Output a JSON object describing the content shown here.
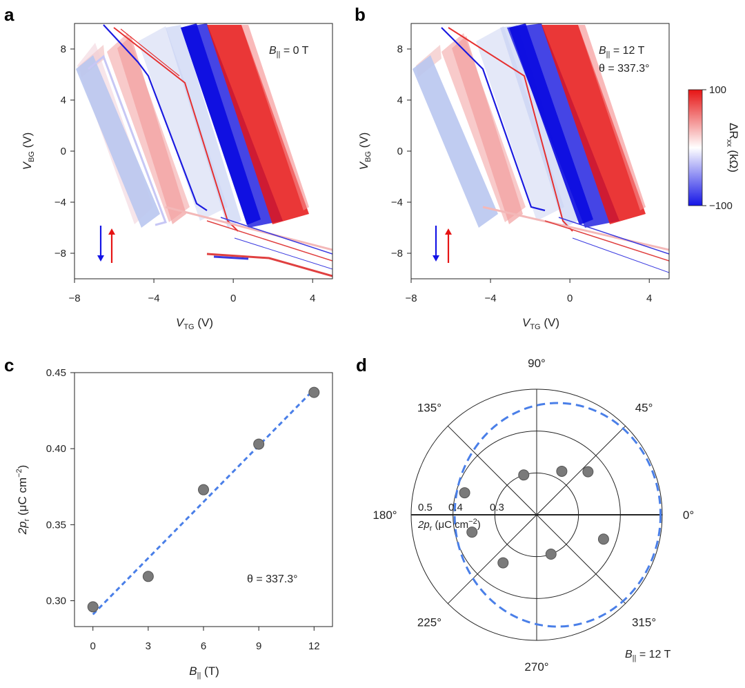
{
  "colors": {
    "down_sweep": "#1414e6",
    "up_sweep": "#e61414",
    "fit_line": "#4a7fe8",
    "marker": "#7a7a7a"
  },
  "panels": [
    {
      "letter": "a",
      "annotation_prefix": "B",
      "annotation_sub": "||",
      "annotation_value": " = 0 T"
    },
    {
      "letter": "b",
      "annotation_prefix": "B",
      "annotation_sub": "||",
      "annotation_value": " = 12 T",
      "angle_label": "θ = 337.3°"
    },
    {
      "letter": "c"
    },
    {
      "letter": "d"
    }
  ],
  "maps": {
    "xlabel_main": "V",
    "xlabel_sub": "TG",
    "xlabel_unit": " (V)",
    "ylabel_main": "V",
    "ylabel_sub": "BG",
    "ylabel_unit": " (V)",
    "xticks": [
      "−8",
      "−4",
      "0",
      "4"
    ],
    "yticks": [
      "8",
      "4",
      "0",
      "−4",
      "−8"
    ],
    "xlim": [
      -8,
      5
    ],
    "ylim": [
      -10,
      10
    ]
  },
  "colorbar": {
    "label_main": "ΔR",
    "label_sub": "xx",
    "label_unit": " (kΩ)",
    "max_label": "100",
    "min_label": "−100",
    "range": [
      -100,
      100
    ]
  },
  "chart_data": [
    {
      "type": "scatter",
      "panel": "c",
      "x": [
        0,
        3,
        6,
        9,
        12
      ],
      "y": [
        0.296,
        0.316,
        0.373,
        0.403,
        0.437
      ],
      "fit": {
        "x": [
          0,
          12
        ],
        "y": [
          0.291,
          0.439
        ]
      },
      "xlabel_main": "B",
      "xlabel_sub": "||",
      "xlabel_unit": " (T)",
      "ylabel_main": "2p",
      "ylabel_sub": "r",
      "ylabel_unit": " (μC cm",
      "ylabel_exp": "−2",
      "ylabel_close": ")",
      "xticks": [
        "0",
        "3",
        "6",
        "9",
        "12"
      ],
      "yticks": [
        "0.45",
        "0.40",
        "0.35",
        "0.30"
      ],
      "xlim": [
        -1,
        13
      ],
      "ylim": [
        0.283,
        0.45
      ],
      "annotation": "θ = 337.3°"
    },
    {
      "type": "scatter",
      "panel": "d",
      "coordinate": "polar",
      "theta_deg": [
        60,
        40,
        108,
        163,
        195,
        235,
        290,
        340
      ],
      "r": [
        0.32,
        0.36,
        0.3,
        0.38,
        0.36,
        0.34,
        0.3,
        0.37
      ],
      "fit_circle": {
        "center_x": 0.05,
        "center_y": 0.0,
        "radius": 0.3
      },
      "rticks": [
        "0.5",
        "0.4",
        "0.3"
      ],
      "r_label_main": "2p",
      "r_label_sub": "r",
      "r_label_unit": " (μC cm",
      "r_label_exp": "−2",
      "r_label_close": ")",
      "angle_labels": [
        "0°",
        "45°",
        "90°",
        "135°",
        "180°",
        "225°",
        "270°",
        "315°"
      ],
      "annotation_prefix": "B",
      "annotation_sub": "||",
      "annotation_value": " = 12 T"
    }
  ]
}
